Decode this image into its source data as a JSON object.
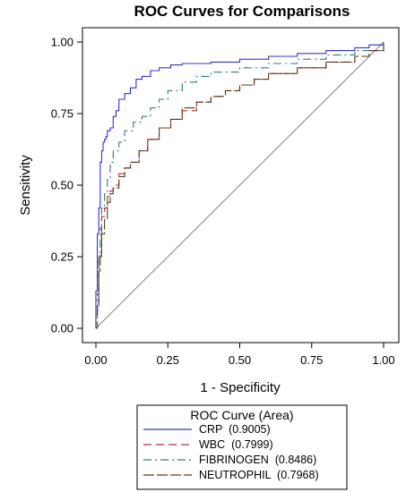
{
  "chart_data": {
    "type": "line",
    "title": "ROC Curves for Comparisons",
    "xlabel": "1 - Specificity",
    "ylabel": "Sensitivity",
    "xlim": [
      0,
      1
    ],
    "ylim": [
      0,
      1
    ],
    "x_ticks": [
      "0.00",
      "0.25",
      "0.50",
      "0.75",
      "1.00"
    ],
    "y_ticks": [
      "0.00",
      "0.25",
      "0.50",
      "0.75",
      "1.00"
    ],
    "grid": false,
    "legend": {
      "title": "ROC Curve (Area)",
      "placement": "bottom",
      "entries": [
        "CRP  (0.9005)",
        "WBC  (0.7999)",
        "FIBRINOGEN  (0.8486)",
        "NEUTROPHIL  (0.7968)"
      ]
    },
    "reference_line": {
      "x": [
        0,
        1
      ],
      "y": [
        0,
        1
      ],
      "color": "#808080"
    },
    "series": [
      {
        "name": "CRP",
        "area": 0.9005,
        "color": "#3333cc",
        "dash": "solid",
        "x": [
          0.0,
          0.0,
          0.005,
          0.005,
          0.01,
          0.01,
          0.015,
          0.015,
          0.02,
          0.025,
          0.03,
          0.035,
          0.04,
          0.05,
          0.06,
          0.07,
          0.08,
          0.1,
          0.12,
          0.14,
          0.16,
          0.19,
          0.22,
          0.26,
          0.3,
          0.4,
          0.5,
          0.6,
          0.7,
          0.8,
          0.9,
          0.95,
          1.0
        ],
        "y": [
          0.0,
          0.13,
          0.2,
          0.33,
          0.35,
          0.42,
          0.5,
          0.58,
          0.62,
          0.65,
          0.66,
          0.67,
          0.69,
          0.7,
          0.74,
          0.76,
          0.8,
          0.82,
          0.84,
          0.87,
          0.88,
          0.9,
          0.91,
          0.92,
          0.925,
          0.93,
          0.94,
          0.95,
          0.96,
          0.97,
          0.98,
          0.99,
          1.0
        ]
      },
      {
        "name": "WBC",
        "area": 0.7999,
        "color": "#b03030",
        "dash": "long",
        "x": [
          0.0,
          0.005,
          0.01,
          0.01,
          0.02,
          0.02,
          0.03,
          0.04,
          0.05,
          0.06,
          0.08,
          0.1,
          0.12,
          0.15,
          0.18,
          0.22,
          0.26,
          0.3,
          0.35,
          0.4,
          0.45,
          0.5,
          0.55,
          0.6,
          0.7,
          0.8,
          0.9,
          0.95,
          1.0
        ],
        "y": [
          0.0,
          0.07,
          0.15,
          0.25,
          0.3,
          0.39,
          0.42,
          0.46,
          0.48,
          0.5,
          0.54,
          0.56,
          0.58,
          0.62,
          0.66,
          0.7,
          0.73,
          0.76,
          0.79,
          0.81,
          0.83,
          0.85,
          0.87,
          0.89,
          0.91,
          0.93,
          0.95,
          0.97,
          1.0
        ]
      },
      {
        "name": "FIBRINOGEN",
        "area": 0.8486,
        "color": "#2f7f6f",
        "dash": "dashdot",
        "x": [
          0.0,
          0.005,
          0.01,
          0.015,
          0.02,
          0.03,
          0.04,
          0.05,
          0.06,
          0.08,
          0.1,
          0.13,
          0.16,
          0.19,
          0.22,
          0.25,
          0.3,
          0.35,
          0.4,
          0.5,
          0.6,
          0.7,
          0.8,
          0.9,
          1.0
        ],
        "y": [
          0.0,
          0.12,
          0.25,
          0.35,
          0.42,
          0.47,
          0.52,
          0.58,
          0.62,
          0.65,
          0.69,
          0.72,
          0.74,
          0.77,
          0.8,
          0.83,
          0.86,
          0.88,
          0.895,
          0.91,
          0.925,
          0.94,
          0.955,
          0.97,
          1.0
        ]
      },
      {
        "name": "NEUTROPHIL",
        "area": 0.7968,
        "color": "#5a3a1a",
        "dash": "longdash",
        "x": [
          0.0,
          0.0,
          0.005,
          0.01,
          0.015,
          0.02,
          0.03,
          0.04,
          0.05,
          0.06,
          0.08,
          0.1,
          0.12,
          0.15,
          0.18,
          0.22,
          0.26,
          0.3,
          0.35,
          0.4,
          0.45,
          0.5,
          0.55,
          0.6,
          0.7,
          0.8,
          0.9,
          0.95,
          1.0
        ],
        "y": [
          0.0,
          0.05,
          0.08,
          0.2,
          0.26,
          0.33,
          0.38,
          0.44,
          0.47,
          0.49,
          0.53,
          0.56,
          0.58,
          0.62,
          0.66,
          0.7,
          0.73,
          0.77,
          0.79,
          0.81,
          0.83,
          0.85,
          0.87,
          0.89,
          0.91,
          0.93,
          0.95,
          0.97,
          0.99
        ]
      }
    ]
  }
}
